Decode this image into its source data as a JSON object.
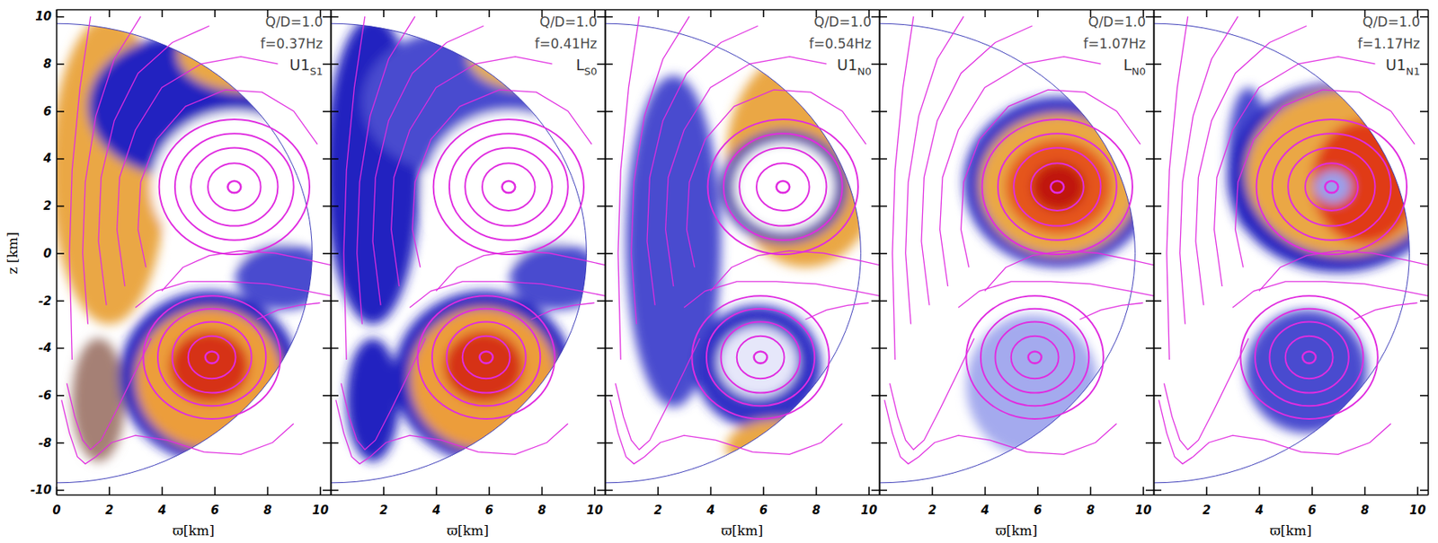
{
  "star_radius": 9.7,
  "magnetic_field": {
    "color": "#e02ce0",
    "loops": [
      {
        "x": 6.75,
        "y": 2.8,
        "r": [
          0.25,
          1.0,
          1.65,
          2.25,
          2.85
        ]
      },
      {
        "x": 5.9,
        "y": -4.4,
        "r": [
          0.25,
          0.9,
          1.5,
          2.05,
          2.6
        ]
      }
    ],
    "lines": [
      {
        "x": [
          3.4,
          3.1,
          3.2,
          3.8,
          4.9,
          6.4,
          7.8,
          9.0,
          9.9
        ],
        "y": [
          -0.6,
          1.0,
          3.0,
          4.8,
          6.2,
          6.9,
          6.8,
          6.0,
          4.6
        ]
      },
      {
        "x": [
          2.6,
          2.3,
          2.4,
          3.0,
          4.0,
          5.5,
          7.0,
          8.4
        ],
        "y": [
          -1.4,
          1.0,
          3.2,
          5.2,
          7.0,
          8.0,
          8.3,
          8.0
        ]
      },
      {
        "x": [
          1.9,
          1.6,
          1.7,
          2.2,
          3.1,
          4.4,
          5.8
        ],
        "y": [
          -2.2,
          0.5,
          3.2,
          5.6,
          7.6,
          8.9,
          9.6
        ]
      },
      {
        "x": [
          1.2,
          1.0,
          1.1,
          1.5,
          2.2,
          3.2
        ],
        "y": [
          -3.0,
          0.0,
          3.0,
          5.8,
          8.2,
          10.0
        ]
      },
      {
        "x": [
          0.6,
          0.5,
          0.6,
          0.9,
          1.3
        ],
        "y": [
          -4.5,
          0.0,
          3.5,
          7.0,
          10.0
        ]
      },
      {
        "x": [
          4.0,
          4.8,
          5.8,
          7.0,
          8.3,
          9.6,
          10.4
        ],
        "y": [
          -1.6,
          -0.6,
          -0.1,
          0.1,
          0.0,
          -0.3,
          -0.5
        ]
      },
      {
        "x": [
          3.0,
          3.8,
          5.0,
          6.5,
          8.0,
          9.5,
          10.4
        ],
        "y": [
          -2.3,
          -1.6,
          -1.2,
          -1.2,
          -1.3,
          -1.6,
          -1.8
        ]
      },
      {
        "x": [
          0.4,
          0.7,
          1.0,
          1.3,
          1.7,
          2.3,
          3.0,
          3.6
        ],
        "y": [
          -5.5,
          -6.9,
          -7.9,
          -8.3,
          -7.9,
          -6.6,
          -5.0,
          -3.6
        ]
      },
      {
        "x": [
          0.2,
          0.5,
          0.8,
          1.1,
          1.5,
          2.1,
          3.0,
          4.2,
          5.6,
          7.0,
          8.2,
          9.0
        ],
        "y": [
          -6.2,
          -7.6,
          -8.6,
          -8.9,
          -8.6,
          -8.0,
          -7.7,
          -7.9,
          -8.4,
          -8.5,
          -8.0,
          -7.2
        ]
      },
      {
        "x": [
          7.6,
          8.4,
          9.2,
          10.0
        ],
        "y": [
          -2.8,
          -2.4,
          -2.2,
          -2.1
        ]
      }
    ]
  },
  "chart_data": [
    {
      "type": "heatmap",
      "labels": [
        "Q/D=1.0",
        "f=0.37Hz"
      ],
      "mode": {
        "name": "U1",
        "subscript": "S1"
      },
      "x_label": "ϖ[km]",
      "y_label": "z [km]",
      "xlim": [
        0,
        10.4
      ],
      "ylim": [
        -10.2,
        10.3
      ],
      "xticks": [
        0,
        2,
        4,
        6,
        8,
        10
      ],
      "yticks": [
        -10,
        -8,
        -6,
        -4,
        -2,
        0,
        2,
        4,
        6,
        8,
        10
      ],
      "regions": [
        {
          "x": 2.0,
          "y": 3.5,
          "rx": 2.2,
          "ry": 6.5,
          "level": 0.55
        },
        {
          "x": 4.8,
          "y": 6.2,
          "rx": 3.6,
          "ry": 3.0,
          "level": 0.35
        },
        {
          "x": 7.2,
          "y": 8.4,
          "rx": 2.6,
          "ry": 1.6,
          "level": 0.55
        },
        {
          "x": 6.8,
          "y": 2.8,
          "rx": 3.2,
          "ry": 3.2,
          "level": 0.0
        },
        {
          "x": 8.6,
          "y": -1.0,
          "rx": 1.8,
          "ry": 1.4,
          "level": 0.3
        },
        {
          "x": 1.6,
          "y": -6.2,
          "rx": 1.0,
          "ry": 2.6,
          "level": 0.45
        },
        {
          "x": 5.8,
          "y": -5.2,
          "rx": 3.4,
          "ry": 3.6,
          "level": 0.35
        },
        {
          "x": 5.8,
          "y": -5.3,
          "rx": 2.8,
          "ry": 3.0,
          "level": 0.6
        },
        {
          "x": 5.8,
          "y": -4.8,
          "rx": 1.5,
          "ry": 1.5,
          "level": 0.88
        }
      ]
    },
    {
      "type": "heatmap",
      "labels": [
        "Q/D=1.0",
        "f=0.41Hz"
      ],
      "mode": {
        "name": "L",
        "subscript": "S0"
      },
      "x_label": "ϖ[km]",
      "xlim": [
        0,
        10.4
      ],
      "ylim": [
        -10.2,
        10.3
      ],
      "xticks": [
        2,
        4,
        6,
        8,
        10
      ],
      "yticks": [
        -10,
        -8,
        -6,
        -4,
        -2,
        0,
        2,
        4,
        6,
        8,
        10
      ],
      "tick_labels": "x",
      "regions": [
        {
          "x": 1.6,
          "y": 3.5,
          "rx": 1.8,
          "ry": 6.5,
          "level": 0.35
        },
        {
          "x": 4.6,
          "y": 6.4,
          "rx": 3.4,
          "ry": 3.0,
          "level": 0.3
        },
        {
          "x": 7.4,
          "y": 8.3,
          "rx": 2.2,
          "ry": 1.4,
          "level": 0.5
        },
        {
          "x": 6.8,
          "y": 2.8,
          "rx": 3.2,
          "ry": 3.2,
          "level": 0.0
        },
        {
          "x": 8.6,
          "y": -1.0,
          "rx": 1.8,
          "ry": 1.4,
          "level": 0.3
        },
        {
          "x": 1.6,
          "y": -6.2,
          "rx": 1.0,
          "ry": 2.6,
          "level": 0.35
        },
        {
          "x": 5.8,
          "y": -5.2,
          "rx": 3.4,
          "ry": 3.6,
          "level": 0.35
        },
        {
          "x": 5.8,
          "y": -5.3,
          "rx": 2.8,
          "ry": 3.0,
          "level": 0.6
        },
        {
          "x": 5.8,
          "y": -4.8,
          "rx": 1.5,
          "ry": 1.5,
          "level": 0.88
        }
      ]
    },
    {
      "type": "heatmap",
      "labels": [
        "Q/D=1.0",
        "f=0.54Hz"
      ],
      "mode": {
        "name": "U1",
        "subscript": "N0"
      },
      "x_label": "ϖ[km]",
      "xlim": [
        0,
        10.4
      ],
      "ylim": [
        -10.2,
        10.3
      ],
      "xticks": [
        2,
        4,
        6,
        8,
        10
      ],
      "yticks": [
        -10,
        -8,
        -6,
        -4,
        -2,
        0,
        2,
        4,
        6,
        8,
        10
      ],
      "tick_labels": "x",
      "regions": [
        {
          "x": 2.6,
          "y": 0.5,
          "rx": 1.8,
          "ry": 7.0,
          "level": 0.3
        },
        {
          "x": 7.6,
          "y": 4.0,
          "rx": 3.0,
          "ry": 4.6,
          "level": 0.55
        },
        {
          "x": 6.8,
          "y": 2.8,
          "rx": 2.4,
          "ry": 2.4,
          "level": 0.38
        },
        {
          "x": 6.8,
          "y": 2.8,
          "rx": 1.9,
          "ry": 1.9,
          "level": 0.0
        },
        {
          "x": 5.8,
          "y": -4.8,
          "rx": 2.4,
          "ry": 2.6,
          "level": 0.33
        },
        {
          "x": 5.8,
          "y": -4.6,
          "rx": 1.5,
          "ry": 1.5,
          "level": 0.05
        },
        {
          "x": 6.6,
          "y": -8.2,
          "rx": 2.0,
          "ry": 1.2,
          "level": 0.55
        }
      ]
    },
    {
      "type": "heatmap",
      "labels": [
        "Q/D=1.0",
        "f=1.07Hz"
      ],
      "mode": {
        "name": "L",
        "subscript": "N0"
      },
      "x_label": "ϖ[km]",
      "xlim": [
        0,
        10.4
      ],
      "ylim": [
        -10.2,
        10.3
      ],
      "xticks": [
        2,
        4,
        6,
        8,
        10
      ],
      "yticks": [
        -10,
        -8,
        -6,
        -4,
        -2,
        0,
        2,
        4,
        6,
        8,
        10
      ],
      "tick_labels": "x",
      "regions": [
        {
          "x": 6.8,
          "y": 3.0,
          "rx": 3.6,
          "ry": 3.6,
          "level": 0.33
        },
        {
          "x": 6.8,
          "y": 2.9,
          "rx": 3.0,
          "ry": 3.0,
          "level": 0.55
        },
        {
          "x": 6.8,
          "y": 2.8,
          "rx": 2.0,
          "ry": 2.0,
          "level": 0.8
        },
        {
          "x": 6.8,
          "y": 2.8,
          "rx": 1.0,
          "ry": 1.0,
          "level": 0.95
        },
        {
          "x": 5.8,
          "y": -5.6,
          "rx": 2.5,
          "ry": 3.0,
          "level": 0.18
        }
      ]
    },
    {
      "type": "heatmap",
      "labels": [
        "Q/D=1.0",
        "f=1.17Hz"
      ],
      "mode": {
        "name": "U1",
        "subscript": "N1"
      },
      "x_label": "ϖ[km]",
      "xlim": [
        0,
        10.4
      ],
      "ylim": [
        -10.2,
        10.3
      ],
      "xticks": [
        2,
        4,
        6,
        8,
        10
      ],
      "yticks": [
        -10,
        -8,
        -6,
        -4,
        -2,
        0,
        2,
        4,
        6,
        8,
        10
      ],
      "tick_labels": "x",
      "regions": [
        {
          "x": 3.6,
          "y": 4.0,
          "rx": 0.8,
          "ry": 3.0,
          "level": 0.3
        },
        {
          "x": 7.0,
          "y": 3.2,
          "rx": 4.2,
          "ry": 4.0,
          "level": 0.35
        },
        {
          "x": 7.2,
          "y": 3.4,
          "rx": 3.7,
          "ry": 3.5,
          "level": 0.55
        },
        {
          "x": 8.0,
          "y": 3.0,
          "rx": 2.0,
          "ry": 2.6,
          "level": 0.85
        },
        {
          "x": 6.8,
          "y": 2.8,
          "rx": 0.7,
          "ry": 0.7,
          "level": 0.2
        },
        {
          "x": 5.8,
          "y": -5.0,
          "rx": 2.3,
          "ry": 2.6,
          "level": 0.3
        }
      ]
    }
  ]
}
